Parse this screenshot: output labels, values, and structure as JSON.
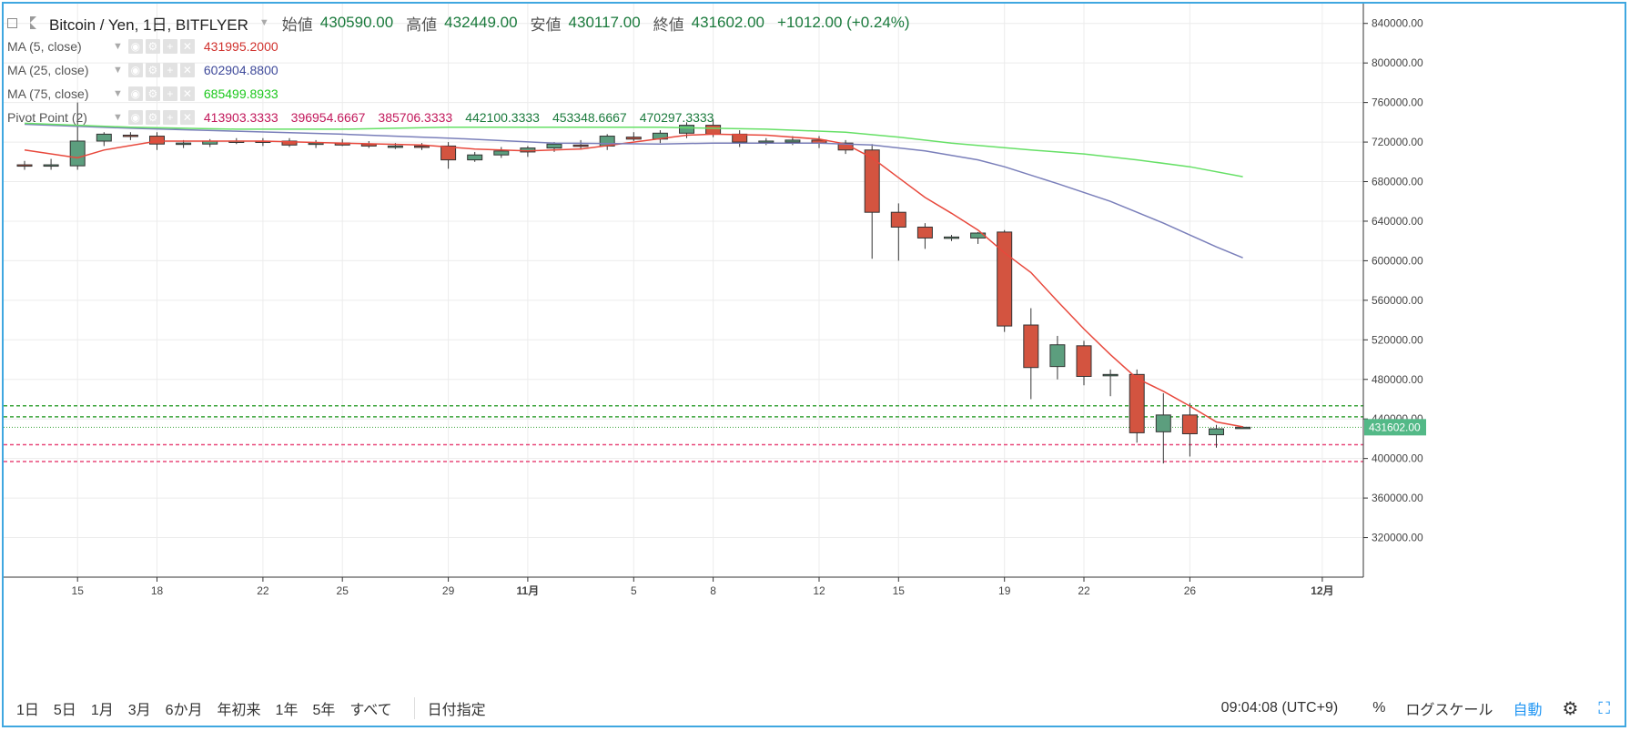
{
  "header": {
    "symbol": "Bitcoin / Yen, 1日, BITFLYER",
    "open_label": "始値",
    "open_value": "430590.00",
    "high_label": "高値",
    "high_value": "432449.00",
    "low_label": "安値",
    "low_value": "430117.00",
    "close_label": "終値",
    "close_value": "431602.00",
    "change": "+1012.00 (+0.24%)"
  },
  "indicators": [
    {
      "name": "MA (5, close)",
      "values": [
        "431995.2000"
      ],
      "colors": [
        "#d0312d"
      ]
    },
    {
      "name": "MA (25, close)",
      "values": [
        "602904.8800"
      ],
      "colors": [
        "#3f4a9a"
      ]
    },
    {
      "name": "MA (75, close)",
      "values": [
        "685499.8933"
      ],
      "colors": [
        "#1cc81c"
      ]
    },
    {
      "name": "Pivot Point (2)",
      "values": [
        "413903.3333",
        "396954.6667",
        "385706.3333",
        "442100.3333",
        "453348.6667",
        "470297.3333"
      ],
      "colors": [
        "#c2185b",
        "#c2185b",
        "#c2185b",
        "#1a7a3c",
        "#1a7a3c",
        "#1a7a3c"
      ]
    }
  ],
  "bottom_bar": {
    "periods": [
      "1日",
      "5日",
      "1月",
      "3月",
      "6か月",
      "年初来",
      "1年",
      "5年",
      "すべて"
    ],
    "date_range": "日付指定",
    "time": "09:04:08 (UTC+9)",
    "percent": "%",
    "log_scale": "ログスケール",
    "auto": "自動",
    "settings_icon": "gear-icon",
    "fullscreen_icon": "fullscreen-icon"
  },
  "colors": {
    "up": "#5c9e7e",
    "down": "#d35440",
    "ma5": "#e8483c",
    "ma25": "#7a7fba",
    "ma75": "#66e066",
    "pivot_support": "#e8487a",
    "pivot_resistance": "#3aa33a",
    "frame": "#3fa7e0"
  },
  "chart_data": {
    "type": "candlestick",
    "y_axis": {
      "range": [
        280000,
        860000
      ],
      "ticks": [
        320000,
        360000,
        400000,
        440000,
        480000,
        520000,
        560000,
        600000,
        640000,
        680000,
        720000,
        760000,
        800000,
        840000
      ],
      "tick_labels": [
        "320000.00",
        "360000.00",
        "400000.00",
        "440000.00",
        "480000.00",
        "520000.00",
        "560000.00",
        "600000.00",
        "640000.00",
        "680000.00",
        "720000.00",
        "760000.00",
        "800000.00",
        "840000.00"
      ]
    },
    "x_axis": {
      "ticks": [
        {
          "date": "10-15",
          "label": "15"
        },
        {
          "date": "10-18",
          "label": "18"
        },
        {
          "date": "10-22",
          "label": "22"
        },
        {
          "date": "10-25",
          "label": "25"
        },
        {
          "date": "10-29",
          "label": "29"
        },
        {
          "date": "11-01",
          "label": "11月"
        },
        {
          "date": "11-05",
          "label": "5"
        },
        {
          "date": "11-08",
          "label": "8"
        },
        {
          "date": "11-12",
          "label": "12"
        },
        {
          "date": "11-15",
          "label": "15"
        },
        {
          "date": "11-19",
          "label": "19"
        },
        {
          "date": "11-22",
          "label": "22"
        },
        {
          "date": "11-26",
          "label": "26"
        },
        {
          "date": "12-01",
          "label": "12月"
        }
      ]
    },
    "candles": [
      {
        "date": "10-13",
        "o": 697000,
        "h": 701000,
        "l": 692000,
        "c": 696000
      },
      {
        "date": "10-14",
        "o": 696000,
        "h": 703000,
        "l": 692000,
        "c": 697000
      },
      {
        "date": "10-15",
        "o": 696000,
        "h": 760000,
        "l": 692000,
        "c": 721000
      },
      {
        "date": "10-16",
        "o": 721000,
        "h": 730000,
        "l": 716000,
        "c": 728000
      },
      {
        "date": "10-17",
        "o": 727000,
        "h": 730000,
        "l": 722000,
        "c": 726000
      },
      {
        "date": "10-18",
        "o": 726000,
        "h": 730000,
        "l": 712000,
        "c": 718000
      },
      {
        "date": "10-19",
        "o": 718000,
        "h": 722000,
        "l": 714000,
        "c": 719000
      },
      {
        "date": "10-20",
        "o": 718000,
        "h": 723000,
        "l": 715000,
        "c": 721000
      },
      {
        "date": "10-21",
        "o": 721000,
        "h": 724000,
        "l": 718000,
        "c": 721000
      },
      {
        "date": "10-22",
        "o": 721000,
        "h": 724000,
        "l": 716000,
        "c": 720000
      },
      {
        "date": "10-23",
        "o": 721000,
        "h": 724000,
        "l": 715000,
        "c": 717000
      },
      {
        "date": "10-24",
        "o": 718000,
        "h": 722000,
        "l": 714000,
        "c": 719000
      },
      {
        "date": "10-25",
        "o": 719000,
        "h": 723000,
        "l": 716000,
        "c": 717000
      },
      {
        "date": "10-26",
        "o": 718000,
        "h": 721000,
        "l": 714000,
        "c": 716000
      },
      {
        "date": "10-27",
        "o": 716000,
        "h": 719000,
        "l": 713000,
        "c": 716000
      },
      {
        "date": "10-28",
        "o": 716000,
        "h": 719000,
        "l": 712000,
        "c": 715000
      },
      {
        "date": "10-29",
        "o": 716000,
        "h": 720000,
        "l": 693000,
        "c": 702000
      },
      {
        "date": "10-30",
        "o": 702000,
        "h": 710000,
        "l": 700000,
        "c": 707000
      },
      {
        "date": "10-31",
        "o": 707000,
        "h": 715000,
        "l": 704000,
        "c": 711000
      },
      {
        "date": "11-01",
        "o": 710000,
        "h": 716000,
        "l": 705000,
        "c": 714000
      },
      {
        "date": "11-02",
        "o": 714000,
        "h": 720000,
        "l": 710000,
        "c": 718000
      },
      {
        "date": "11-03",
        "o": 717000,
        "h": 722000,
        "l": 713000,
        "c": 716000
      },
      {
        "date": "11-04",
        "o": 716000,
        "h": 728000,
        "l": 712000,
        "c": 726000
      },
      {
        "date": "11-05",
        "o": 725000,
        "h": 730000,
        "l": 721000,
        "c": 723000
      },
      {
        "date": "11-06",
        "o": 723000,
        "h": 732000,
        "l": 719000,
        "c": 729000
      },
      {
        "date": "11-07",
        "o": 729000,
        "h": 740000,
        "l": 724000,
        "c": 737000
      },
      {
        "date": "11-08",
        "o": 737000,
        "h": 743000,
        "l": 725000,
        "c": 728000
      },
      {
        "date": "11-09",
        "o": 728000,
        "h": 732000,
        "l": 715000,
        "c": 720000
      },
      {
        "date": "11-10",
        "o": 720000,
        "h": 724000,
        "l": 717000,
        "c": 721000
      },
      {
        "date": "11-11",
        "o": 720000,
        "h": 726000,
        "l": 717000,
        "c": 722000
      },
      {
        "date": "11-12",
        "o": 722000,
        "h": 726000,
        "l": 714000,
        "c": 719000
      },
      {
        "date": "11-13",
        "o": 719000,
        "h": 722000,
        "l": 708000,
        "c": 712000
      },
      {
        "date": "11-14",
        "o": 712000,
        "h": 718000,
        "l": 602000,
        "c": 649000
      },
      {
        "date": "11-15",
        "o": 649000,
        "h": 658000,
        "l": 600000,
        "c": 634000
      },
      {
        "date": "11-16",
        "o": 634000,
        "h": 638000,
        "l": 612000,
        "c": 623000
      },
      {
        "date": "11-17",
        "o": 623000,
        "h": 626000,
        "l": 620000,
        "c": 624000
      },
      {
        "date": "11-18",
        "o": 623000,
        "h": 629000,
        "l": 617000,
        "c": 628000
      },
      {
        "date": "11-19",
        "o": 629000,
        "h": 631000,
        "l": 528000,
        "c": 534000
      },
      {
        "date": "11-20",
        "o": 535000,
        "h": 552000,
        "l": 460000,
        "c": 492000
      },
      {
        "date": "11-21",
        "o": 493000,
        "h": 524000,
        "l": 480000,
        "c": 515000
      },
      {
        "date": "11-22",
        "o": 514000,
        "h": 519000,
        "l": 474000,
        "c": 483000
      },
      {
        "date": "11-23",
        "o": 484000,
        "h": 490000,
        "l": 463000,
        "c": 485000
      },
      {
        "date": "11-24",
        "o": 485000,
        "h": 490000,
        "l": 416000,
        "c": 426000
      },
      {
        "date": "11-25",
        "o": 427000,
        "h": 466000,
        "l": 395000,
        "c": 444000
      },
      {
        "date": "11-26",
        "o": 444000,
        "h": 456000,
        "l": 402000,
        "c": 425000
      },
      {
        "date": "11-27",
        "o": 424000,
        "h": 434000,
        "l": 411000,
        "c": 430000
      },
      {
        "date": "11-28",
        "o": 430590,
        "h": 432449,
        "l": 430117,
        "c": 431602
      }
    ],
    "series": [
      {
        "name": "MA (5, close)",
        "type": "line",
        "points": [
          [
            "10-13",
            712000
          ],
          [
            "10-15",
            704000
          ],
          [
            "10-16",
            712000
          ],
          [
            "10-18",
            721000
          ],
          [
            "10-20",
            721000
          ],
          [
            "10-22",
            721000
          ],
          [
            "10-25",
            719000
          ],
          [
            "10-28",
            717000
          ],
          [
            "10-30",
            713000
          ],
          [
            "11-01",
            711000
          ],
          [
            "11-03",
            713000
          ],
          [
            "11-05",
            720000
          ],
          [
            "11-07",
            727000
          ],
          [
            "11-08",
            728000
          ],
          [
            "11-10",
            727000
          ],
          [
            "11-12",
            723000
          ],
          [
            "11-13",
            718000
          ],
          [
            "11-14",
            704000
          ],
          [
            "11-15",
            684000
          ],
          [
            "11-16",
            664000
          ],
          [
            "11-17",
            648000
          ],
          [
            "11-18",
            631000
          ],
          [
            "11-19",
            608000
          ],
          [
            "11-20",
            588000
          ],
          [
            "11-21",
            559000
          ],
          [
            "11-22",
            531000
          ],
          [
            "11-23",
            505000
          ],
          [
            "11-24",
            481000
          ],
          [
            "11-25",
            468000
          ],
          [
            "11-26",
            453000
          ],
          [
            "11-27",
            437000
          ],
          [
            "11-28",
            432000
          ]
        ]
      },
      {
        "name": "MA (25, close)",
        "type": "line",
        "points": [
          [
            "10-13",
            738000
          ],
          [
            "10-17",
            734000
          ],
          [
            "10-21",
            731000
          ],
          [
            "10-25",
            728000
          ],
          [
            "10-29",
            724000
          ],
          [
            "11-02",
            719000
          ],
          [
            "11-06",
            718000
          ],
          [
            "11-08",
            719000
          ],
          [
            "11-12",
            719000
          ],
          [
            "11-14",
            717000
          ],
          [
            "11-16",
            711000
          ],
          [
            "11-18",
            702000
          ],
          [
            "11-19",
            695000
          ],
          [
            "11-21",
            678000
          ],
          [
            "11-23",
            660000
          ],
          [
            "11-25",
            638000
          ],
          [
            "11-27",
            614000
          ],
          [
            "11-28",
            603000
          ]
        ]
      },
      {
        "name": "MA (75, close)",
        "type": "line",
        "points": [
          [
            "10-13",
            739000
          ],
          [
            "10-17",
            735000
          ],
          [
            "10-21",
            733000
          ],
          [
            "10-25",
            733000
          ],
          [
            "10-29",
            735000
          ],
          [
            "11-02",
            735000
          ],
          [
            "11-06",
            735000
          ],
          [
            "11-10",
            733000
          ],
          [
            "11-13",
            730000
          ],
          [
            "11-15",
            725000
          ],
          [
            "11-17",
            719000
          ],
          [
            "11-20",
            712000
          ],
          [
            "11-22",
            708000
          ],
          [
            "11-24",
            702000
          ],
          [
            "11-26",
            695000
          ],
          [
            "11-28",
            685000
          ]
        ]
      }
    ],
    "pivot_lines": [
      {
        "value": 453348.6667,
        "kind": "resistance"
      },
      {
        "value": 442100.3333,
        "kind": "resistance"
      },
      {
        "value": 413903.3333,
        "kind": "support"
      },
      {
        "value": 396954.6667,
        "kind": "support"
      }
    ],
    "last_price": {
      "value": 431602,
      "label": "431602.00"
    },
    "grid": true
  }
}
